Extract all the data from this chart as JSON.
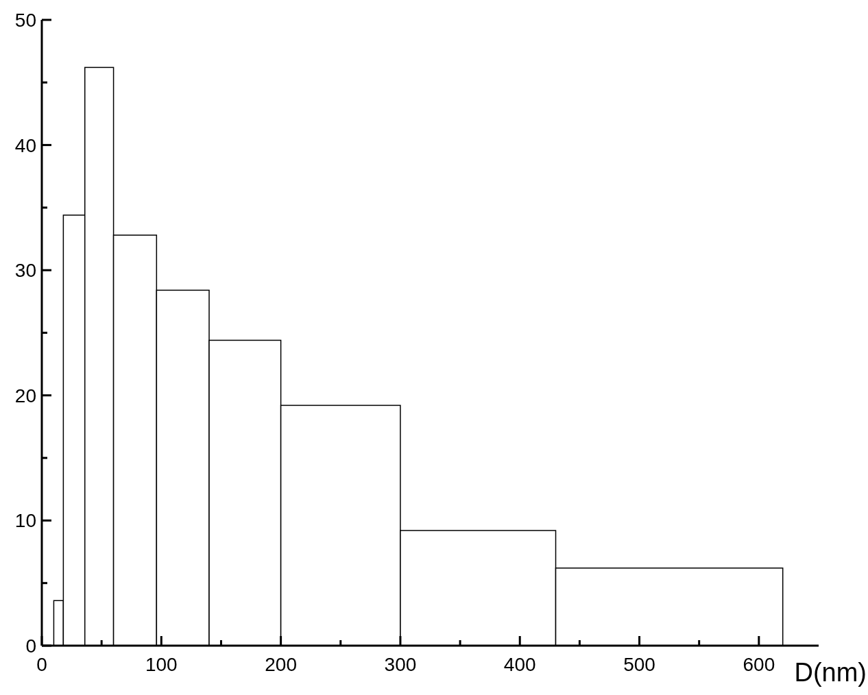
{
  "chart_data": {
    "type": "histogram",
    "xlabel": "D(nm)",
    "bins": [
      10,
      18,
      36,
      60,
      96,
      140,
      200,
      300,
      430,
      620
    ],
    "values": [
      3.6,
      34.4,
      46.2,
      32.8,
      28.4,
      24.4,
      19.2,
      9.2,
      6.2
    ],
    "color": "#ffffff",
    "xlim": [
      0,
      650
    ],
    "ylim": [
      0,
      50
    ],
    "xticks": [
      0,
      {
        "value": 50,
        "label": null
      },
      100,
      {
        "value": 150,
        "label": null
      },
      200,
      {
        "value": 250,
        "label": null
      },
      300,
      {
        "value": 350,
        "label": null
      },
      400,
      {
        "value": 450,
        "label": null
      },
      500,
      {
        "value": 550,
        "label": null
      },
      600
    ],
    "yticks": [
      0,
      {
        "value": 5,
        "label": null
      },
      10,
      {
        "value": 15,
        "label": null
      },
      20,
      {
        "value": 25,
        "label": null
      },
      30,
      {
        "value": 35,
        "label": null
      },
      40,
      {
        "value": 45,
        "label": null
      },
      50
    ],
    "grid": false
  }
}
